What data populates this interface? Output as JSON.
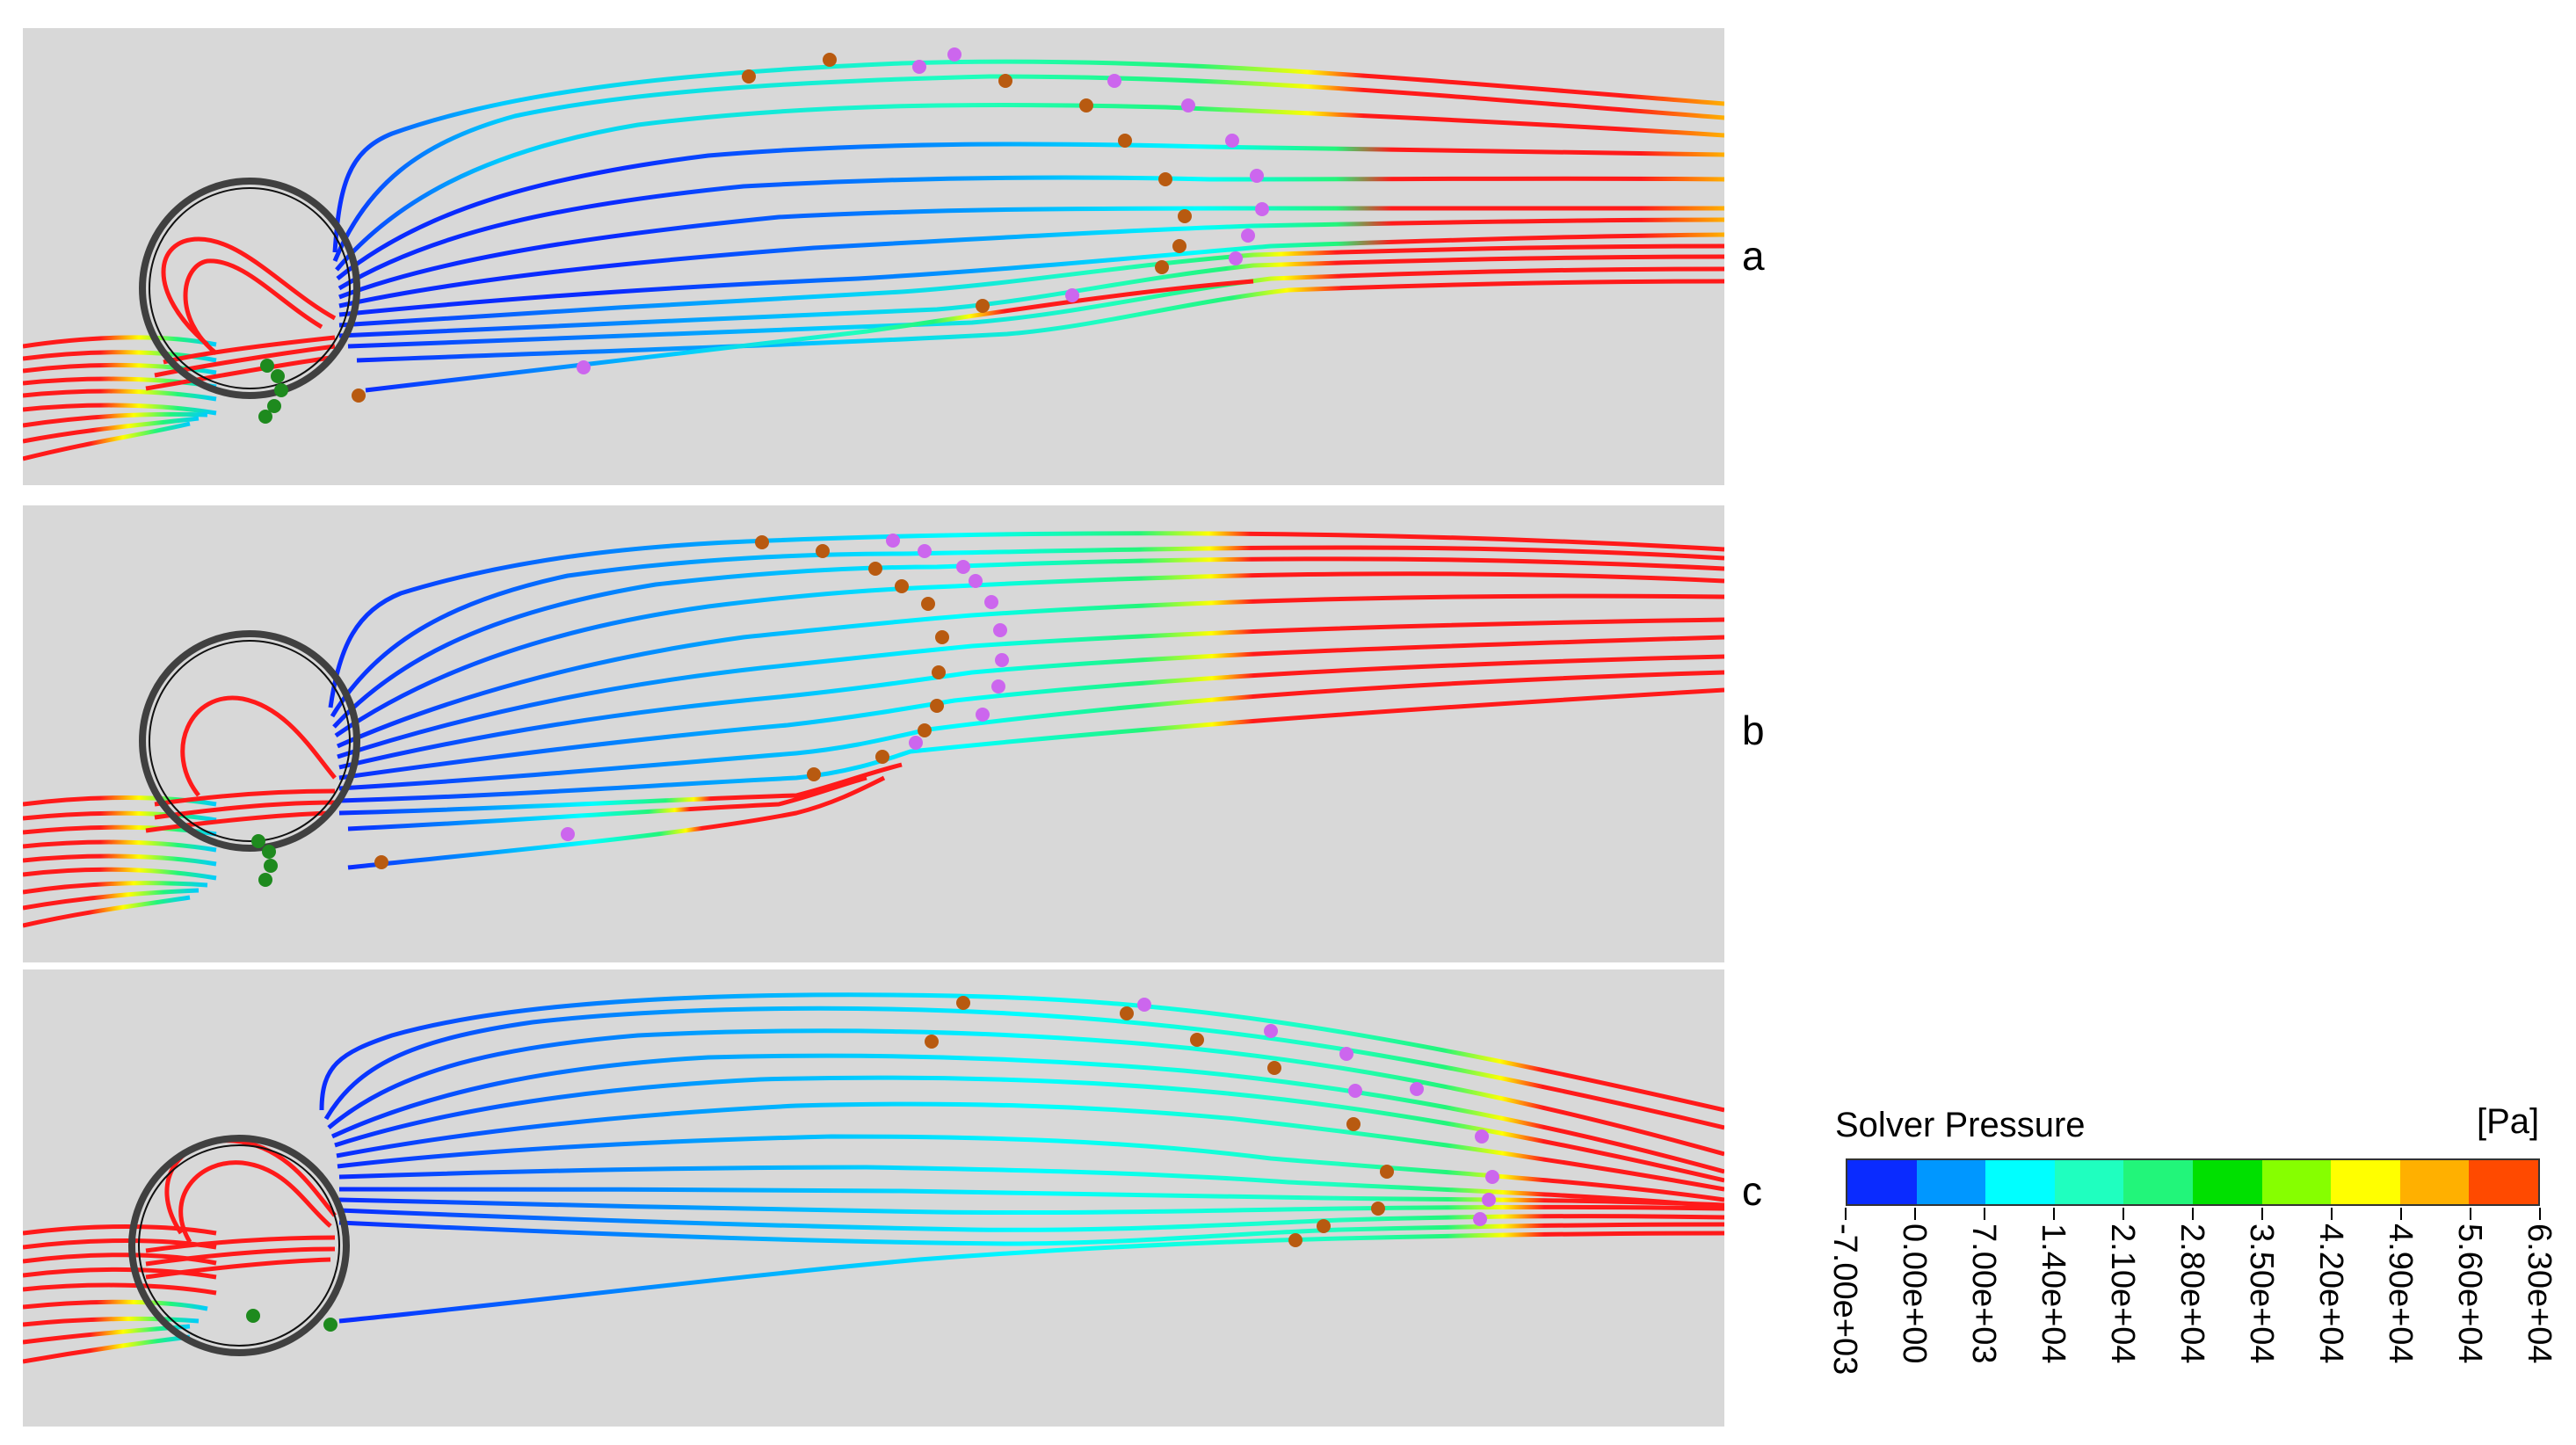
{
  "panels": [
    {
      "id": "a",
      "label": "a"
    },
    {
      "id": "b",
      "label": "b"
    },
    {
      "id": "c",
      "label": "c"
    }
  ],
  "legend": {
    "title": "Solver Pressure",
    "unit": "[Pa]",
    "tick_labels": [
      "-7.00e+03",
      "0.00e+00",
      "7.00e+03",
      "1.40e+04",
      "2.10e+04",
      "2.80e+04",
      "3.50e+04",
      "4.20e+04",
      "4.90e+04",
      "5.60e+04",
      "6.30e+04"
    ],
    "colors": [
      "#0a2bff",
      "#0097ff",
      "#00ffff",
      "#1fffbf",
      "#22f57a",
      "#00e000",
      "#86ff00",
      "#ffff00",
      "#ffb000",
      "#ff4a00"
    ]
  },
  "colors": {
    "panel_background": "#d8d8d8",
    "streamline_high": "#ff1a1a",
    "particle_orange": "#b85a10",
    "particle_purple": "#cc66ee",
    "particle_green": "#1e8a1e",
    "cylinder_ring": "#404040"
  }
}
